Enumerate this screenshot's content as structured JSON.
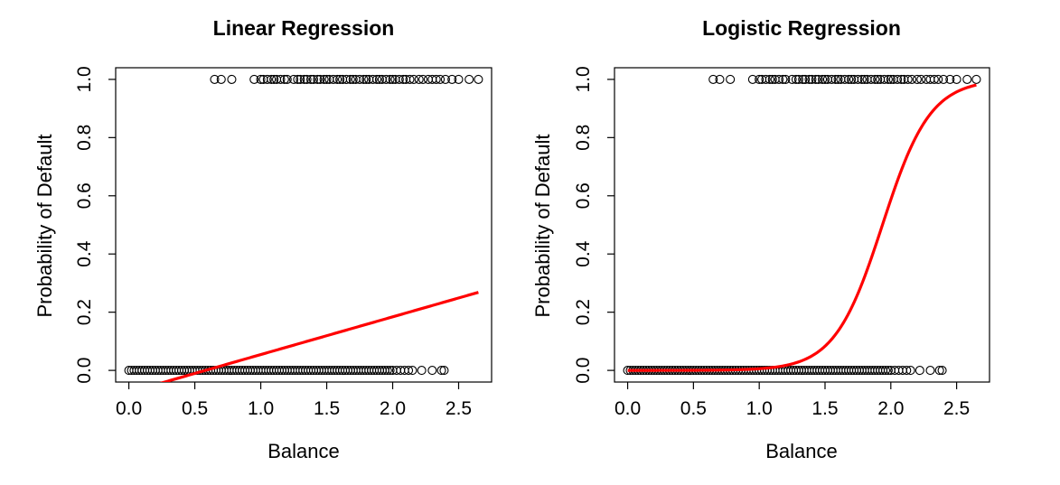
{
  "chart_data": [
    {
      "type": "scatter",
      "title": "Linear Regression",
      "xlabel": "Balance",
      "ylabel": "Probability of Default",
      "xlim": [
        -0.1,
        2.75
      ],
      "ylim": [
        -0.04,
        1.04
      ],
      "xticks": [
        "0.0",
        "0.5",
        "1.0",
        "1.5",
        "2.0",
        "2.5"
      ],
      "yticks": [
        "0.0",
        "0.2",
        "0.4",
        "0.6",
        "0.8",
        "1.0"
      ],
      "points_top": {
        "y": 1,
        "x": [
          0.65,
          0.7,
          0.78,
          0.95,
          1.0,
          1.02,
          1.05,
          1.08,
          1.1,
          1.12,
          1.15,
          1.18,
          1.2,
          1.25,
          1.28,
          1.3,
          1.33,
          1.35,
          1.38,
          1.4,
          1.43,
          1.45,
          1.48,
          1.5,
          1.52,
          1.55,
          1.58,
          1.6,
          1.62,
          1.65,
          1.68,
          1.7,
          1.72,
          1.75,
          1.78,
          1.8,
          1.82,
          1.85,
          1.88,
          1.9,
          1.92,
          1.95,
          1.98,
          2.0,
          2.02,
          2.05,
          2.08,
          2.1,
          2.13,
          2.16,
          2.2,
          2.23,
          2.27,
          2.3,
          2.33,
          2.36,
          2.4,
          2.45,
          2.5,
          2.58,
          2.65
        ]
      },
      "points_bottom": {
        "y": 0,
        "x": [
          0.0,
          0.02,
          0.04,
          0.06,
          0.08,
          0.1,
          0.12,
          0.14,
          0.16,
          0.18,
          0.2,
          0.22,
          0.24,
          0.26,
          0.28,
          0.3,
          0.32,
          0.34,
          0.36,
          0.38,
          0.4,
          0.42,
          0.44,
          0.46,
          0.48,
          0.5,
          0.52,
          0.54,
          0.56,
          0.58,
          0.6,
          0.62,
          0.64,
          0.66,
          0.68,
          0.7,
          0.72,
          0.74,
          0.76,
          0.78,
          0.8,
          0.82,
          0.84,
          0.86,
          0.88,
          0.9,
          0.92,
          0.94,
          0.96,
          0.98,
          1.0,
          1.02,
          1.04,
          1.06,
          1.08,
          1.1,
          1.12,
          1.14,
          1.16,
          1.18,
          1.2,
          1.22,
          1.24,
          1.26,
          1.28,
          1.3,
          1.32,
          1.34,
          1.36,
          1.38,
          1.4,
          1.42,
          1.44,
          1.46,
          1.48,
          1.5,
          1.52,
          1.54,
          1.56,
          1.58,
          1.6,
          1.62,
          1.64,
          1.66,
          1.68,
          1.7,
          1.72,
          1.74,
          1.76,
          1.78,
          1.8,
          1.82,
          1.84,
          1.86,
          1.88,
          1.9,
          1.92,
          1.94,
          1.96,
          1.98,
          2.0,
          2.03,
          2.06,
          2.09,
          2.12,
          2.15,
          2.22,
          2.3,
          2.37,
          2.39
        ]
      },
      "fit": {
        "kind": "linear",
        "color": "#ff0000",
        "x_range": [
          0.22,
          2.65
        ],
        "intercept": -0.0752,
        "slope": 0.1296
      }
    },
    {
      "type": "scatter",
      "title": "Logistic Regression",
      "xlabel": "Balance",
      "ylabel": "Probability of Default",
      "xlim": [
        -0.1,
        2.75
      ],
      "ylim": [
        -0.04,
        1.04
      ],
      "xticks": [
        "0.0",
        "0.5",
        "1.0",
        "1.5",
        "2.0",
        "2.5"
      ],
      "yticks": [
        "0.0",
        "0.2",
        "0.4",
        "0.6",
        "0.8",
        "1.0"
      ],
      "points_top": {
        "y": 1,
        "x": [
          0.65,
          0.7,
          0.78,
          0.95,
          1.0,
          1.02,
          1.05,
          1.08,
          1.1,
          1.12,
          1.15,
          1.18,
          1.2,
          1.25,
          1.28,
          1.3,
          1.33,
          1.35,
          1.38,
          1.4,
          1.43,
          1.45,
          1.48,
          1.5,
          1.52,
          1.55,
          1.58,
          1.6,
          1.62,
          1.65,
          1.68,
          1.7,
          1.72,
          1.75,
          1.78,
          1.8,
          1.82,
          1.85,
          1.88,
          1.9,
          1.92,
          1.95,
          1.98,
          2.0,
          2.02,
          2.05,
          2.08,
          2.1,
          2.13,
          2.16,
          2.2,
          2.23,
          2.27,
          2.3,
          2.33,
          2.36,
          2.4,
          2.45,
          2.5,
          2.58,
          2.65
        ]
      },
      "points_bottom": {
        "y": 0,
        "x": [
          0.0,
          0.02,
          0.04,
          0.06,
          0.08,
          0.1,
          0.12,
          0.14,
          0.16,
          0.18,
          0.2,
          0.22,
          0.24,
          0.26,
          0.28,
          0.3,
          0.32,
          0.34,
          0.36,
          0.38,
          0.4,
          0.42,
          0.44,
          0.46,
          0.48,
          0.5,
          0.52,
          0.54,
          0.56,
          0.58,
          0.6,
          0.62,
          0.64,
          0.66,
          0.68,
          0.7,
          0.72,
          0.74,
          0.76,
          0.78,
          0.8,
          0.82,
          0.84,
          0.86,
          0.88,
          0.9,
          0.92,
          0.94,
          0.96,
          0.98,
          1.0,
          1.02,
          1.04,
          1.06,
          1.08,
          1.1,
          1.12,
          1.14,
          1.16,
          1.18,
          1.2,
          1.22,
          1.24,
          1.26,
          1.28,
          1.3,
          1.32,
          1.34,
          1.36,
          1.38,
          1.4,
          1.42,
          1.44,
          1.46,
          1.48,
          1.5,
          1.52,
          1.54,
          1.56,
          1.58,
          1.6,
          1.62,
          1.64,
          1.66,
          1.68,
          1.7,
          1.72,
          1.74,
          1.76,
          1.78,
          1.8,
          1.82,
          1.84,
          1.86,
          1.88,
          1.9,
          1.92,
          1.94,
          1.96,
          1.98,
          2.0,
          2.03,
          2.06,
          2.09,
          2.12,
          2.15,
          2.22,
          2.3,
          2.37,
          2.39
        ]
      },
      "fit": {
        "kind": "logistic",
        "color": "#ff0000",
        "x_range": [
          0.0,
          2.65
        ],
        "intercept": -10.65,
        "slope": 5.5
      }
    }
  ]
}
